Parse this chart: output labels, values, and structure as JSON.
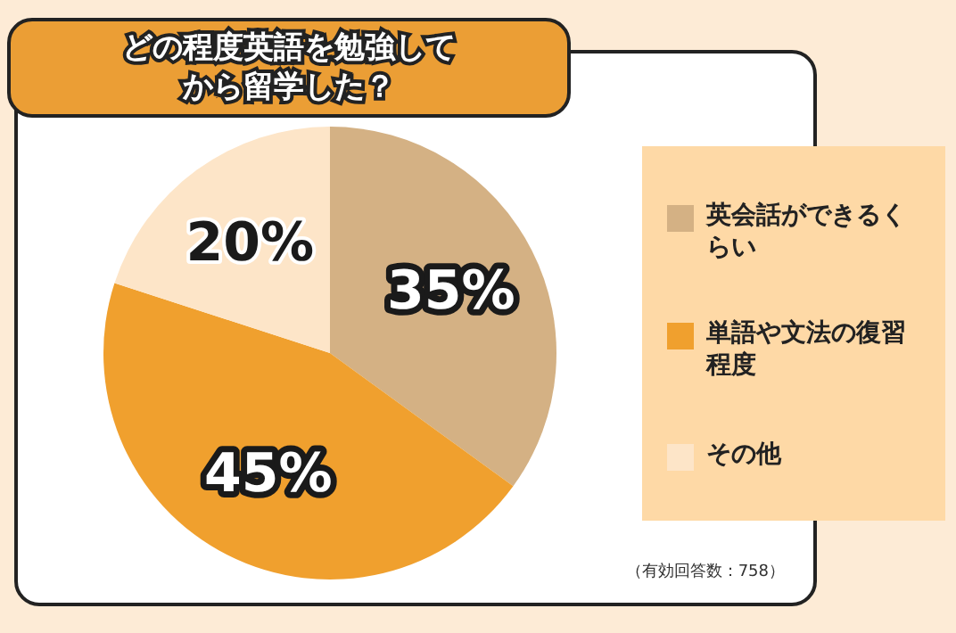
{
  "chart_data": {
    "type": "pie",
    "title": "どの程度英語を勉強してから留学した？",
    "categories": [
      "英会話ができるくらい",
      "単語や文法の復習程度",
      "その他"
    ],
    "values": [
      35,
      45,
      20
    ],
    "colors": [
      "#d4b184",
      "#f0a02e",
      "#fde5c8"
    ],
    "value_labels": [
      "35%",
      "45%",
      "20%"
    ],
    "legend": "right",
    "annotations": [
      "（有効回答数：758）"
    ]
  }
}
